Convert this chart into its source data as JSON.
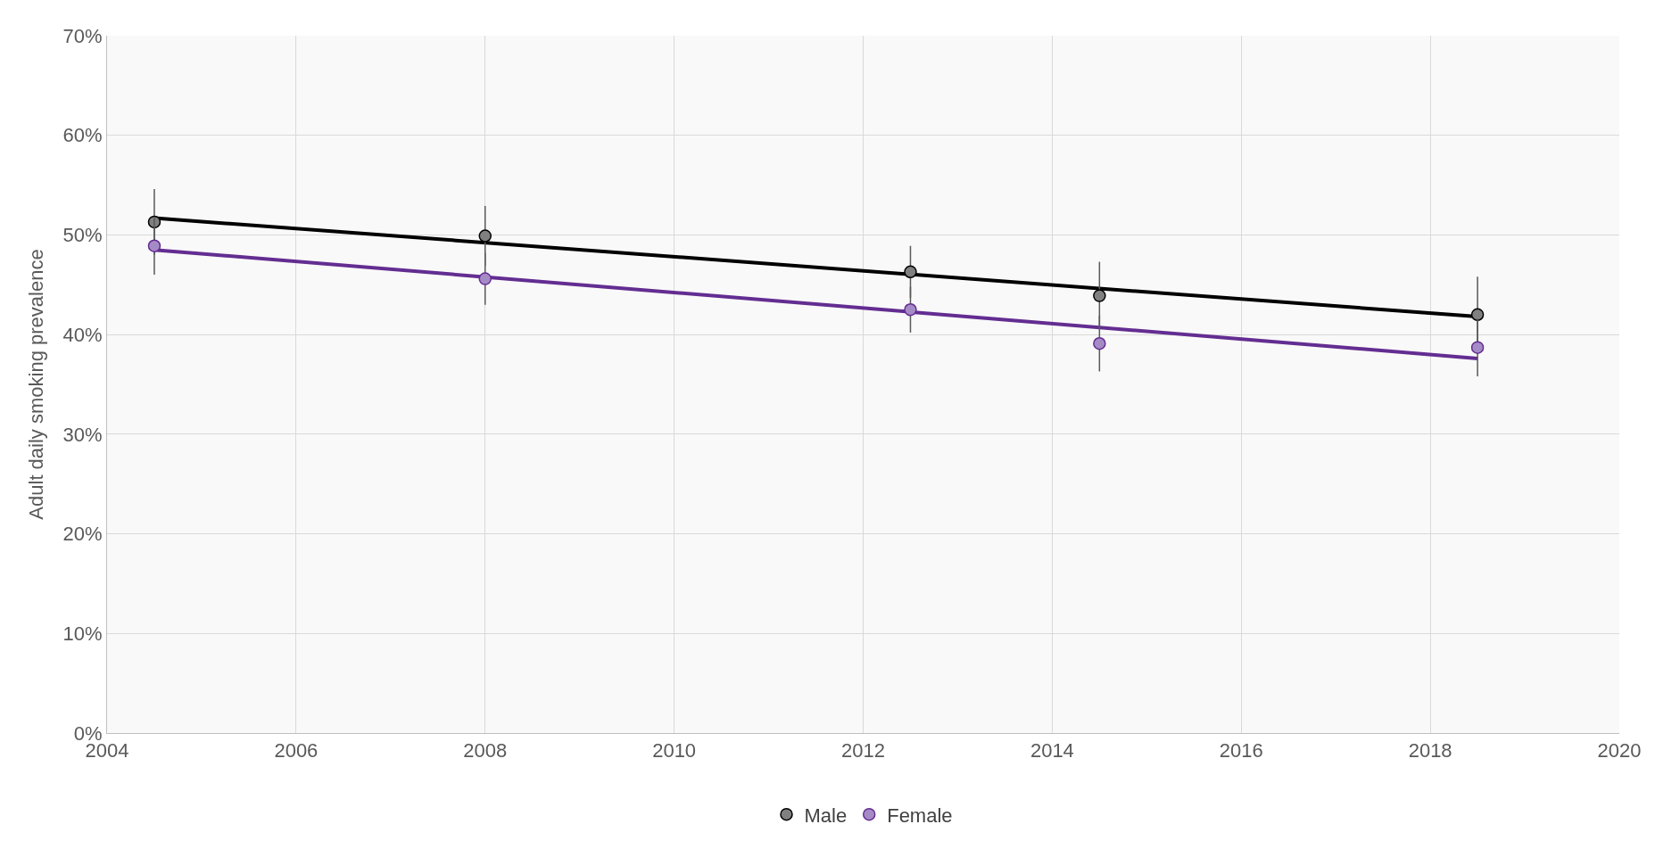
{
  "chart_data": {
    "type": "scatter",
    "ylabel": "Adult daily smoking prevalence",
    "xlim": [
      2004,
      2020
    ],
    "xticks": [
      2004,
      2006,
      2008,
      2010,
      2012,
      2014,
      2016,
      2018,
      2020
    ],
    "ylim": [
      0,
      70
    ],
    "yticks": [
      {
        "value": 0,
        "label": "0%"
      },
      {
        "value": 10,
        "label": "10%"
      },
      {
        "value": 20,
        "label": "20%"
      },
      {
        "value": 30,
        "label": "30%"
      },
      {
        "value": 40,
        "label": "40%"
      },
      {
        "value": 50,
        "label": "50%"
      },
      {
        "value": 60,
        "label": "60%"
      },
      {
        "value": 70,
        "label": "70%"
      }
    ],
    "grid": true,
    "legend": "bottom",
    "marker": "circle",
    "series": [
      {
        "type": "line",
        "marker": "none",
        "color": "#000000",
        "x": [
          2004.5,
          2018.5
        ],
        "values": [
          51.7,
          41.8
        ]
      },
      {
        "type": "line",
        "marker": "none",
        "color": "#632d91",
        "x": [
          2004.5,
          2018.5
        ],
        "values": [
          48.5,
          37.6
        ]
      },
      {
        "name": "Male",
        "color": "#808080",
        "x": [
          2004.5,
          2008,
          2012.5,
          2014.5,
          2018.5
        ],
        "values": [
          51.3,
          49.9,
          46.3,
          43.9,
          42.0
        ],
        "errors": [
          3.3,
          3.0,
          2.6,
          3.4,
          3.8
        ]
      },
      {
        "name": "Female",
        "color": "#a58bc6",
        "x": [
          2004.5,
          2008,
          2012.5,
          2014.5,
          2018.5
        ],
        "values": [
          48.9,
          45.6,
          42.5,
          39.1,
          38.7
        ],
        "errors": [
          2.9,
          2.6,
          2.3,
          2.8,
          2.9
        ]
      }
    ]
  }
}
